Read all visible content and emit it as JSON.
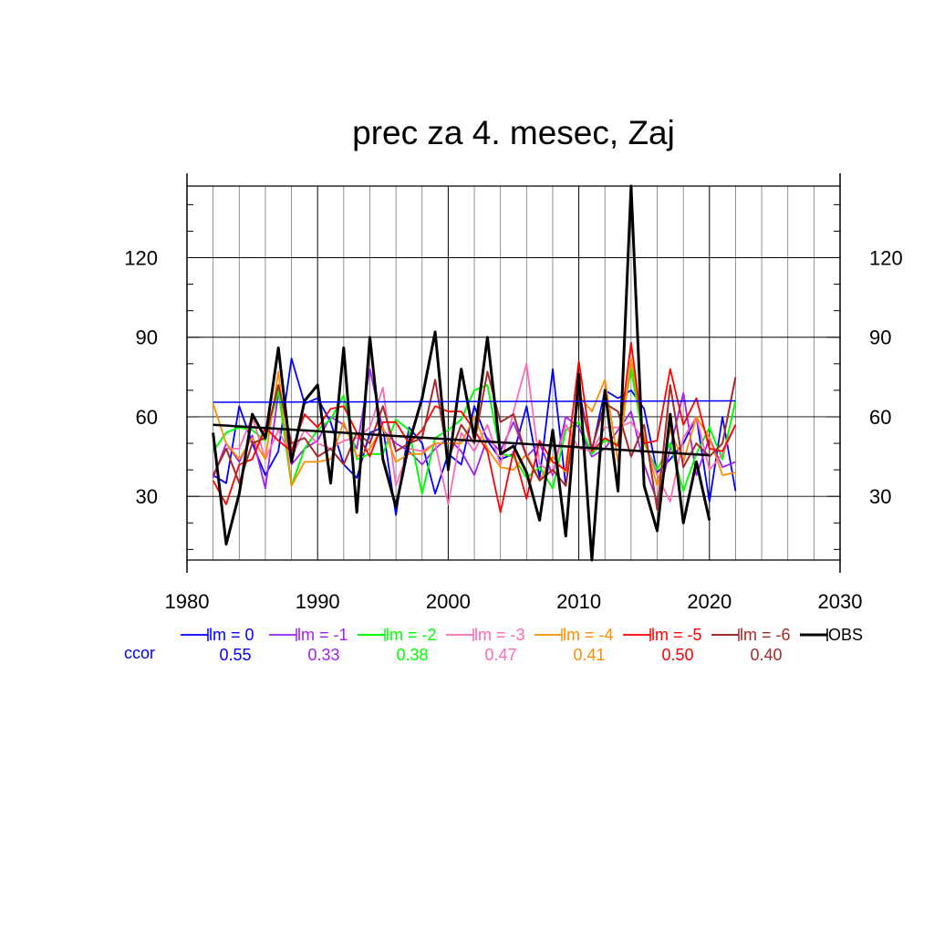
{
  "chart_data": {
    "type": "line",
    "title": "prec za 4. mesec, Zaj",
    "xlabel": "",
    "ylabel": "",
    "xlim": [
      1980,
      2030
    ],
    "ylim": [
      6,
      147
    ],
    "x_ticks": [
      "1980",
      "1990",
      "2000",
      "2010",
      "2020",
      "2030"
    ],
    "y_ticks": [
      "30",
      "60",
      "90",
      "120"
    ],
    "grid": true,
    "years": [
      1982,
      1983,
      1984,
      1985,
      1986,
      1987,
      1988,
      1989,
      1990,
      1991,
      1992,
      1993,
      1994,
      1995,
      1996,
      1997,
      1998,
      1999,
      2000,
      2001,
      2002,
      2003,
      2004,
      2005,
      2006,
      2007,
      2008,
      2009,
      2010,
      2011,
      2012,
      2013,
      2014,
      2015,
      2016,
      2017,
      2018,
      2019,
      2020,
      2021,
      2022
    ],
    "series": [
      {
        "name": "lm = 0",
        "color": "#0000ff",
        "width": 1.8,
        "values": [
          38,
          35,
          64,
          50,
          38,
          47,
          82,
          65,
          67,
          58,
          42,
          37,
          54,
          56,
          23,
          56,
          50,
          31,
          46,
          42,
          64,
          51,
          44,
          46,
          64,
          37,
          78,
          34,
          70,
          47,
          70,
          67,
          70,
          63,
          39,
          44,
          50,
          60,
          28,
          60,
          32
        ]
      },
      {
        "name": "lm = -1",
        "color": "#a020f0",
        "width": 1.8,
        "values": [
          37,
          50,
          43,
          53,
          33,
          69,
          42,
          48,
          51,
          60,
          57,
          48,
          78,
          55,
          50,
          47,
          42,
          48,
          52,
          47,
          38,
          52,
          47,
          58,
          45,
          50,
          38,
          60,
          56,
          45,
          48,
          55,
          62,
          42,
          28,
          48,
          69,
          38,
          52,
          41,
          43
        ]
      },
      {
        "name": "lm = -2",
        "color": "#00ff00",
        "width": 2.0,
        "values": [
          47,
          54,
          56,
          55,
          51,
          70,
          34,
          48,
          55,
          59,
          68,
          44,
          46,
          46,
          59,
          55,
          31,
          52,
          55,
          59,
          70,
          72,
          46,
          45,
          37,
          41,
          33,
          55,
          58,
          46,
          51,
          50,
          78,
          50,
          40,
          50,
          32,
          46,
          56,
          44,
          66
        ]
      },
      {
        "name": "lm = -3",
        "color": "#ff69b4",
        "width": 1.8,
        "values": [
          38,
          48,
          48,
          60,
          44,
          55,
          45,
          55,
          50,
          48,
          51,
          52,
          56,
          71,
          34,
          48,
          47,
          50,
          27,
          54,
          47,
          57,
          42,
          62,
          80,
          42,
          39,
          57,
          48,
          47,
          56,
          56,
          58,
          51,
          38,
          28,
          52,
          60,
          40,
          46,
          57
        ]
      },
      {
        "name": "lm = -4",
        "color": "#ff8c00",
        "width": 1.8,
        "values": [
          65,
          50,
          44,
          52,
          44,
          77,
          34,
          43,
          43,
          44,
          58,
          45,
          48,
          56,
          43,
          46,
          46,
          50,
          50,
          50,
          60,
          48,
          41,
          40,
          46,
          36,
          45,
          39,
          68,
          62,
          74,
          43,
          82,
          52,
          34,
          55,
          43,
          60,
          52,
          38,
          39
        ]
      },
      {
        "name": "lm = -5",
        "color": "#ff0000",
        "width": 1.8,
        "values": [
          36,
          27,
          42,
          44,
          56,
          51,
          47,
          61,
          56,
          63,
          64,
          54,
          45,
          58,
          58,
          50,
          55,
          64,
          62,
          62,
          55,
          47,
          24,
          47,
          29,
          51,
          43,
          40,
          81,
          47,
          52,
          49,
          88,
          50,
          51,
          78,
          57,
          67,
          48,
          47,
          57
        ]
      },
      {
        "name": "lm = -6",
        "color": "#a52a2a",
        "width": 2.0,
        "values": [
          38,
          48,
          35,
          50,
          52,
          72,
          50,
          52,
          45,
          48,
          42,
          54,
          50,
          64,
          47,
          50,
          52,
          74,
          44,
          57,
          50,
          77,
          58,
          61,
          45,
          36,
          40,
          34,
          68,
          48,
          65,
          62,
          45,
          57,
          25,
          72,
          41,
          50,
          45,
          50,
          75
        ]
      },
      {
        "name": "OBS",
        "color": "#000000",
        "width": 3.0,
        "values": [
          54,
          12,
          31,
          61,
          52,
          86,
          43,
          66,
          72,
          35,
          86,
          24,
          90,
          44,
          26,
          50,
          67,
          92,
          40,
          78,
          52,
          90,
          46,
          49,
          39,
          21,
          55,
          15,
          76,
          6,
          70,
          32,
          147,
          34,
          17,
          61,
          20,
          43,
          21
        ]
      },
      {
        "name": "trend lm = 0",
        "color": "#0000ff",
        "width": 1.5,
        "x": [
          1982,
          2022
        ],
        "values": [
          65.5,
          66
        ]
      },
      {
        "name": "trend OBS",
        "color": "#000000",
        "width": 2.5,
        "x": [
          1982,
          2020
        ],
        "values": [
          57,
          45.5
        ]
      }
    ],
    "legend": {
      "placement": "bottom",
      "entries": [
        {
          "label": "lm = 0",
          "color": "#0000ff",
          "width": 1.8,
          "ccor": "0.55"
        },
        {
          "label": "lm = -1",
          "color": "#a020f0",
          "width": 1.8,
          "ccor": "0.33"
        },
        {
          "label": "lm = -2",
          "color": "#00ff00",
          "width": 2.0,
          "ccor": "0.38"
        },
        {
          "label": "lm = -3",
          "color": "#ff69b4",
          "width": 1.8,
          "ccor": "0.47"
        },
        {
          "label": "lm = -4",
          "color": "#ff8c00",
          "width": 1.8,
          "ccor": "0.41"
        },
        {
          "label": "lm = -5",
          "color": "#ff0000",
          "width": 1.8,
          "ccor": "0.50"
        },
        {
          "label": "lm = -6",
          "color": "#a52a2a",
          "width": 2.0,
          "ccor": "0.40"
        },
        {
          "label": "OBS",
          "color": "#000000",
          "width": 3.0,
          "ccor": ""
        }
      ],
      "ccor_label": "ccor",
      "ccor_label_color": "#0000ff"
    }
  }
}
